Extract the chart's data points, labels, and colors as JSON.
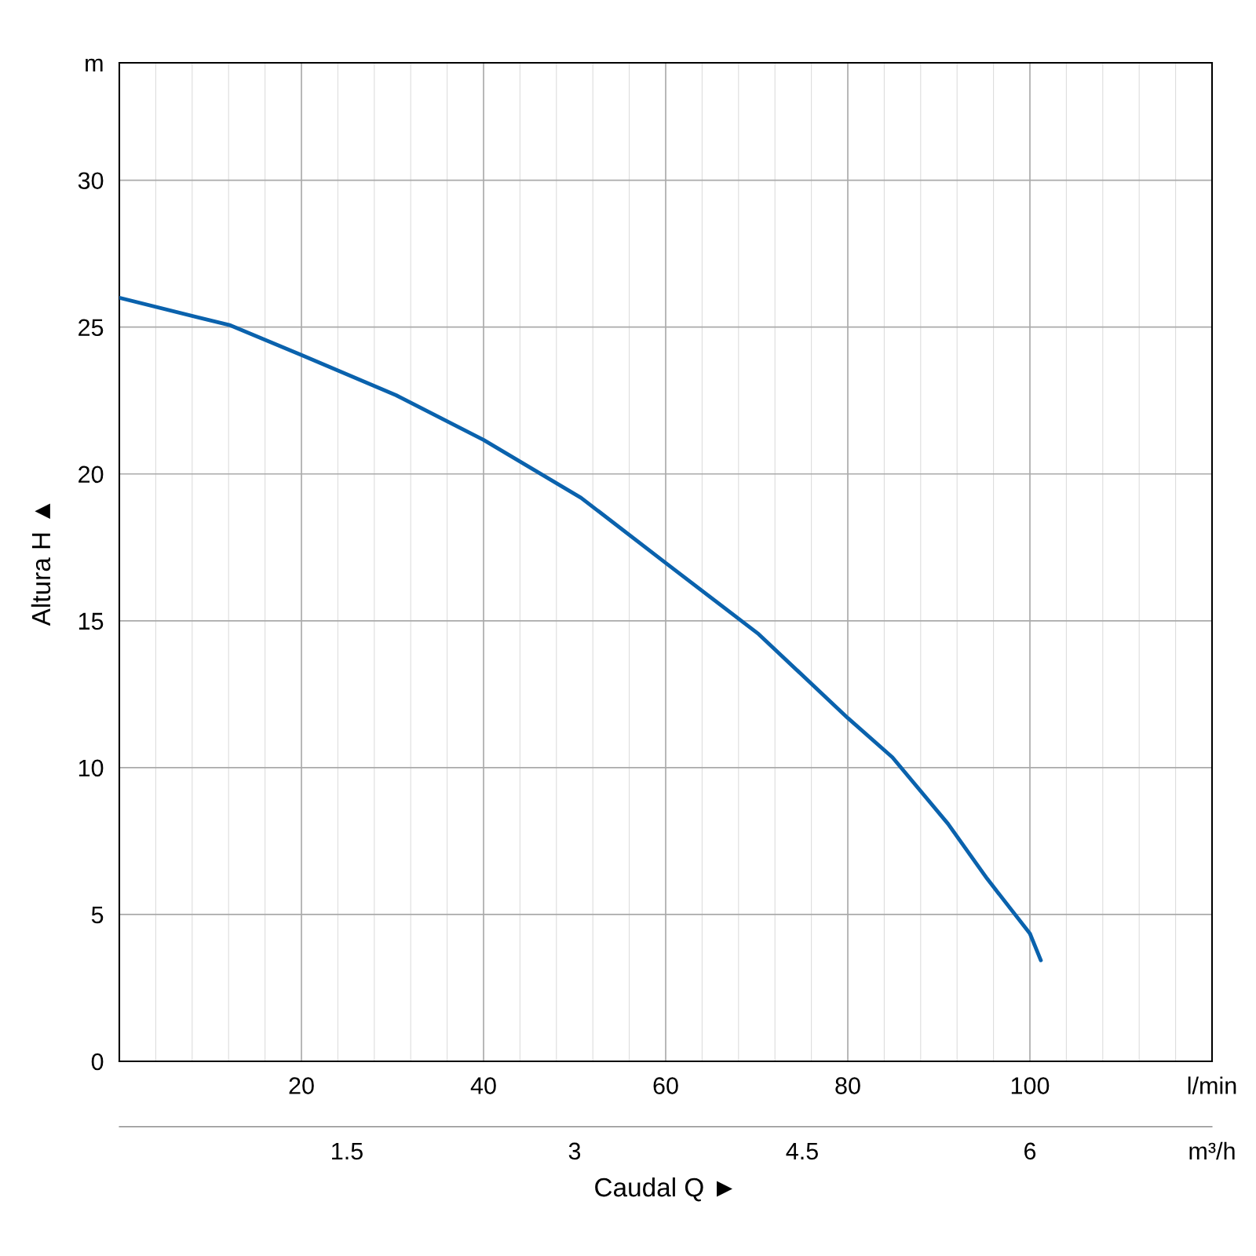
{
  "chart_data": {
    "type": "line",
    "xlabel": "Caudal Q ►",
    "ylabel": "Altura H ▲",
    "x2label": null,
    "series": [
      {
        "color": "#0a62ad",
        "x": [
          0,
          12.2,
          20,
          30.4,
          40,
          50.7,
          60,
          70.2,
          80,
          84.9,
          91,
          95.3,
          100,
          101.2
        ],
        "values": [
          26.0,
          25.06,
          24.05,
          22.68,
          21.16,
          19.19,
          16.97,
          14.55,
          11.69,
          10.35,
          8.09,
          6.22,
          4.35,
          3.44
        ]
      }
    ],
    "xlim": [
      0,
      120
    ],
    "xticks": [
      20,
      40,
      60,
      80,
      100,
      {
        "value": 120,
        "label": "l/min"
      }
    ],
    "x2lim": [
      0,
      7.2
    ],
    "x2ticks": [
      1.5,
      3,
      4.5,
      6,
      {
        "value": 7.2,
        "label": "m³/h"
      }
    ],
    "ylim": [
      0,
      34
    ],
    "yticks": [
      0,
      5,
      10,
      15,
      20,
      25,
      30,
      {
        "value": 34,
        "label": "m"
      }
    ],
    "grid": true,
    "marker": "none",
    "line_style": "solid"
  }
}
